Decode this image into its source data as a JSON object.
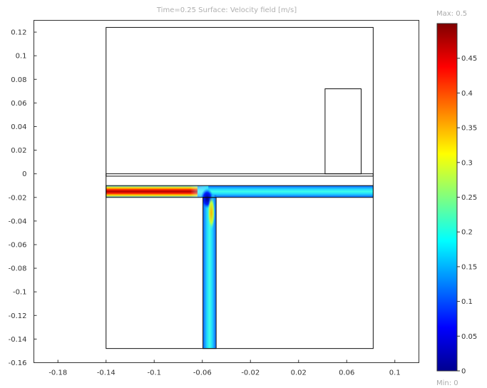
{
  "chart_data": {
    "type": "heatmap",
    "title": "Time=0.25    Surface: Velocity field [m/s]",
    "xlabel": "",
    "ylabel": "",
    "xlim": [
      -0.2,
      0.12
    ],
    "ylim": [
      -0.16,
      0.13
    ],
    "x_ticks": [
      "-0.18",
      "-0.14",
      "-0.1",
      "-0.06",
      "-0.02",
      "0.02",
      "0.06",
      "0.1"
    ],
    "x_tick_values": [
      -0.18,
      -0.14,
      -0.1,
      -0.06,
      -0.02,
      0.02,
      0.06,
      0.1
    ],
    "y_ticks": [
      "0.12",
      "0.1",
      "0.08",
      "0.06",
      "0.04",
      "0.02",
      "0",
      "-0.02",
      "-0.04",
      "-0.06",
      "-0.08",
      "-0.1",
      "-0.12",
      "-0.14",
      "-0.16"
    ],
    "y_tick_values": [
      0.12,
      0.1,
      0.08,
      0.06,
      0.04,
      0.02,
      0,
      -0.02,
      -0.04,
      -0.06,
      -0.08,
      -0.1,
      -0.12,
      -0.14,
      -0.16
    ],
    "geometry": {
      "outer_box": {
        "x": [
          -0.14,
          0.082
        ],
        "y": [
          -0.148,
          0.124
        ]
      },
      "upper_plate": {
        "x": [
          -0.14,
          0.082
        ],
        "y": [
          -0.002,
          0.0
        ]
      },
      "block": {
        "x": [
          0.042,
          0.072
        ],
        "y": [
          0.0,
          0.072
        ]
      },
      "horizontal_channel": {
        "x": [
          -0.14,
          0.082
        ],
        "y": [
          -0.02,
          -0.01
        ]
      },
      "vertical_channel": {
        "x": [
          -0.0595,
          -0.0485
        ],
        "y": [
          -0.148,
          -0.02
        ]
      }
    },
    "field": {
      "inlet_left_velocity": 0.45,
      "outlet_right_velocity": 0.2,
      "outlet_down_velocity": 0.2,
      "stagnation_zone_velocity": 0.0
    },
    "colorbar": {
      "colormap": "jet",
      "range": [
        0,
        0.5
      ],
      "max_label": "Max: 0.5",
      "min_label": "Min: 0",
      "tick_labels": [
        "0.45",
        "0.4",
        "0.35",
        "0.3",
        "0.25",
        "0.2",
        "0.15",
        "0.1",
        "0.05",
        "0"
      ],
      "tick_values": [
        0.45,
        0.4,
        0.35,
        0.3,
        0.25,
        0.2,
        0.15,
        0.1,
        0.05,
        0
      ]
    }
  }
}
